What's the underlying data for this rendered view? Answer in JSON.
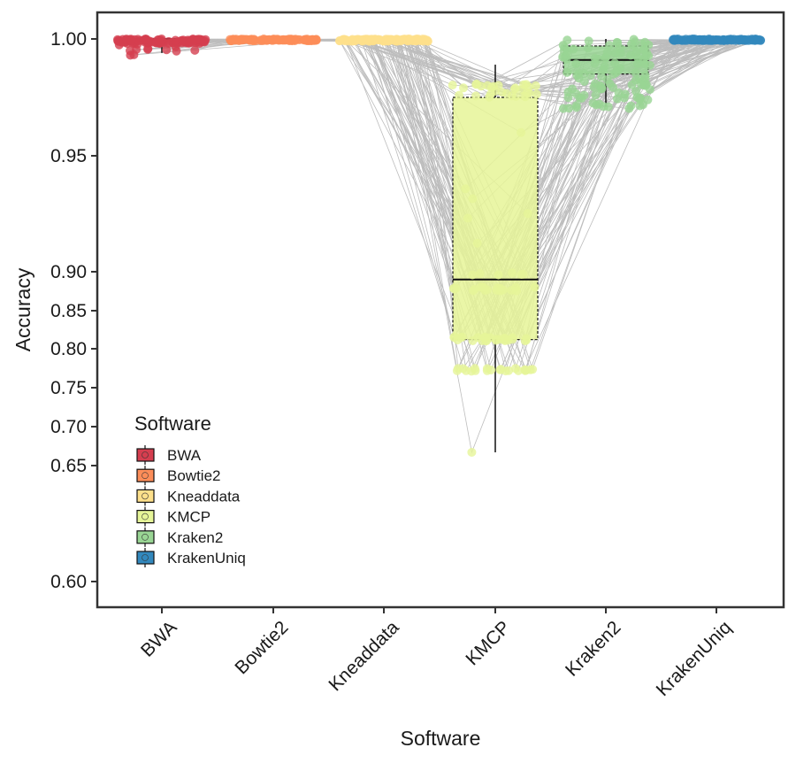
{
  "chart_data": {
    "type": "box",
    "title": "",
    "xlabel": "Software",
    "ylabel": "Accuracy",
    "y_scale": "nonlinear (0.60-0.65 and 0.90-1.00 expanded)",
    "y_ticks": [
      0.6,
      0.65,
      0.7,
      0.75,
      0.8,
      0.85,
      0.9,
      0.95,
      1.0
    ],
    "y_tick_labels": [
      "0.60",
      "0.65",
      "0.70",
      "0.75",
      "0.80",
      "0.85",
      "0.90",
      "0.95",
      "1.00"
    ],
    "grid": false,
    "overlay": "jittered points per sample with grey paired lines connecting the same sample across software",
    "categories": [
      "BWA",
      "Bowtie2",
      "Kneaddata",
      "KMCP",
      "Kraken2",
      "KrakenUniq"
    ],
    "colors": [
      "#d53e4f",
      "#fc8d59",
      "#fee08b",
      "#e6f598",
      "#99d594",
      "#3288bd"
    ],
    "boxes": [
      {
        "name": "BWA",
        "min": 0.994,
        "q1": 0.999,
        "median": 1.0,
        "q3": 1.0,
        "max": 1.0
      },
      {
        "name": "Bowtie2",
        "min": 0.999,
        "q1": 1.0,
        "median": 1.0,
        "q3": 1.0,
        "max": 1.0
      },
      {
        "name": "Kneaddata",
        "min": 0.999,
        "q1": 1.0,
        "median": 1.0,
        "q3": 1.0,
        "max": 1.0
      },
      {
        "name": "KMCP",
        "min": 0.667,
        "q1": 0.812,
        "median": 0.89,
        "q3": 0.975,
        "max": 0.989
      },
      {
        "name": "Kraken2",
        "min": 0.971,
        "q1": 0.985,
        "median": 0.991,
        "q3": 0.997,
        "max": 1.0
      },
      {
        "name": "KrakenUniq",
        "min": 0.999,
        "q1": 1.0,
        "median": 1.0,
        "q3": 1.0,
        "max": 1.0
      }
    ],
    "legend": {
      "title": "Software",
      "position": "bottom-left inside plot",
      "entries": [
        "BWA",
        "Bowtie2",
        "Kneaddata",
        "KMCP",
        "Kraken2",
        "KrakenUniq"
      ]
    }
  }
}
